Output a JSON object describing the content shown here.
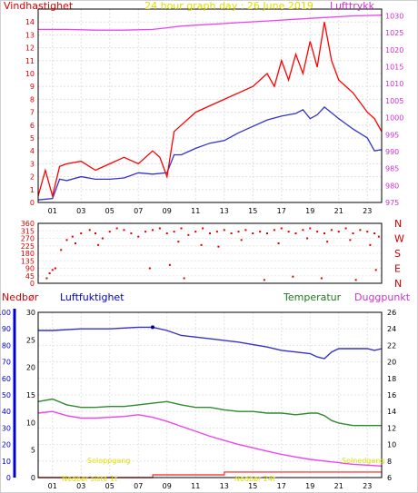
{
  "charts": {
    "wind": {
      "title": "24 hour graph day : 26 June 2019",
      "left_label": "Vindhastighet",
      "right_label": "Lufttrykk",
      "left_ticks": [
        "0",
        "1",
        "2",
        "3",
        "4",
        "5",
        "6",
        "7",
        "8",
        "9",
        "10",
        "11",
        "12",
        "13",
        "14"
      ],
      "right_ticks": [
        "975",
        "980",
        "985",
        "990",
        "995",
        "1000",
        "1005",
        "1010",
        "1015",
        "1020",
        "1025",
        "1030"
      ],
      "x_ticks": [
        "01",
        "03",
        "05",
        "07",
        "09",
        "11",
        "13",
        "15",
        "17",
        "19",
        "21",
        "23"
      ]
    },
    "direction": {
      "left_ticks": [
        "0",
        "45",
        "90",
        "135",
        "180",
        "225",
        "270",
        "315",
        "360"
      ],
      "compass": [
        "N",
        "W",
        "S",
        "E",
        "N"
      ]
    },
    "weather": {
      "label_rain": "Nedbør",
      "label_humidity": "Luftfuktighet",
      "label_temp": "Temperatur",
      "label_dew": "Duggpunkt",
      "humidity_ticks": [
        "0",
        "10",
        "20",
        "30",
        "40",
        "50",
        "60",
        "70",
        "80",
        "90",
        "100"
      ],
      "rain_ticks": [
        "0",
        "5",
        "10",
        "15",
        "20",
        "25",
        "30"
      ],
      "temp_ticks": [
        "6",
        "8",
        "10",
        "12",
        "14",
        "16",
        "18",
        "20",
        "22",
        "24",
        "26"
      ],
      "x_ticks": [
        "01",
        "03",
        "05",
        "07",
        "09",
        "11",
        "13",
        "15",
        "17",
        "19",
        "21",
        "23"
      ],
      "sunrise": "Soloppgang",
      "sunset": "Solnedgang",
      "bottom_left": "Nedbør siste 1t",
      "bottom_mid": "Nedbør 24t"
    }
  },
  "colors": {
    "wind": "#ff0000",
    "gust": "#ff6060",
    "avg": "#3333cc",
    "pressure": "#ee44ee",
    "direction": "#dd0000",
    "humidity": "#3333cc",
    "temperature": "#2e8b2e",
    "dewpoint": "#ee44ee",
    "rain": "#ff4040",
    "sun": "#dddd00",
    "title": "#dddd00",
    "axis_dark": "#000000",
    "axis_blue": "#0000cc"
  },
  "chart_data": [
    {
      "type": "line",
      "title": "24 hour graph day : 26 June 2019",
      "ylabel": "Vindhastighet",
      "ylabel_right": "Lufttrykk",
      "xlim": [
        0,
        24
      ],
      "ylim": [
        0,
        15
      ],
      "ylim_right": [
        975,
        1032
      ],
      "series": [
        {
          "axis": "left",
          "color": "#3333cc",
          "x": [
            0,
            1,
            1.5,
            2,
            3,
            4,
            5,
            6,
            7,
            8,
            9,
            9.5,
            10,
            11,
            12,
            13,
            14,
            15,
            16,
            17,
            17.5,
            18,
            18.5,
            19,
            19.5,
            20,
            21,
            22,
            23,
            23.5,
            24
          ],
          "y": [
            0.2,
            0.3,
            1.8,
            1.7,
            2.0,
            1.8,
            1.8,
            1.9,
            2.3,
            2.2,
            2.3,
            3.7,
            3.7,
            4.2,
            4.6,
            4.8,
            5.4,
            5.9,
            6.4,
            6.7,
            6.8,
            6.9,
            7.2,
            6.5,
            6.8,
            7.4,
            6.5,
            5.7,
            5.0,
            4.0,
            4.1
          ]
        },
        {
          "axis": "left",
          "color": "#ff0000",
          "x": [
            0,
            0.5,
            1,
            1.5,
            2,
            3,
            4,
            5,
            6,
            7,
            8,
            8.5,
            9,
            9.5,
            10,
            11,
            12,
            13,
            14,
            15,
            16,
            16.5,
            17,
            17.5,
            18,
            18.5,
            19,
            19.5,
            20,
            20.5,
            21,
            22,
            23,
            23.5,
            24
          ],
          "y": [
            0.5,
            2.5,
            0.5,
            2.8,
            3.0,
            3.2,
            2.5,
            3.0,
            3.5,
            3.0,
            4.0,
            3.5,
            2.0,
            5.5,
            6.0,
            7.0,
            7.5,
            8.0,
            8.5,
            9.0,
            10.0,
            9.0,
            11.0,
            9.5,
            11.5,
            10.0,
            12.5,
            10.5,
            14.0,
            11.0,
            9.5,
            8.5,
            7.0,
            6.5,
            5.5
          ]
        },
        {
          "axis": "right",
          "color": "#ee44ee",
          "x": [
            0,
            2,
            4,
            6,
            8,
            9,
            10,
            12,
            14,
            16,
            18,
            20,
            22,
            24
          ],
          "y": [
            1026,
            1026,
            1025.8,
            1025.8,
            1026,
            1026.5,
            1027,
            1027.5,
            1028,
            1028.5,
            1029,
            1029.5,
            1030,
            1030.2
          ]
        }
      ]
    },
    {
      "type": "scatter",
      "title": "",
      "ylabel": "",
      "xlim": [
        0,
        24
      ],
      "ylim": [
        0,
        360
      ],
      "series": [
        {
          "color": "#dd0000",
          "x": [
            0.6,
            0.8,
            1.0,
            1.2,
            1.6,
            2.0,
            2.4,
            3.0,
            3.6,
            4.0,
            4.5,
            5.0,
            5.5,
            6.0,
            6.5,
            7.0,
            7.5,
            8.0,
            8.5,
            9.0,
            9.5,
            10.0,
            10.5,
            11.0,
            11.5,
            12.0,
            12.5,
            13.0,
            13.5,
            14.0,
            14.5,
            15.0,
            15.5,
            16.0,
            16.5,
            17.0,
            17.5,
            18.0,
            18.5,
            19.0,
            19.5,
            20.0,
            20.5,
            21.0,
            21.5,
            22.0,
            22.5,
            23.0,
            23.5,
            23.8,
            2.6,
            4.2,
            9.8,
            11.4,
            12.6,
            14.2,
            16.8,
            18.8,
            20.2,
            21.8,
            23.2,
            7.8,
            9.2,
            10.2,
            15.8,
            17.8,
            19.8,
            22.2,
            23.6
          ],
          "y": [
            30,
            60,
            80,
            90,
            200,
            260,
            280,
            300,
            320,
            300,
            270,
            310,
            330,
            320,
            300,
            280,
            310,
            320,
            330,
            300,
            310,
            330,
            290,
            310,
            330,
            300,
            310,
            320,
            300,
            310,
            320,
            300,
            310,
            300,
            320,
            330,
            310,
            300,
            320,
            330,
            310,
            300,
            320,
            310,
            330,
            300,
            320,
            310,
            300,
            280,
            240,
            230,
            250,
            230,
            220,
            260,
            240,
            270,
            250,
            260,
            230,
            90,
            110,
            30,
            20,
            40,
            30,
            20,
            80
          ]
        }
      ]
    },
    {
      "type": "line",
      "title": "",
      "ylabel": "Luftfuktighet",
      "ylabel_right": "Temperatur",
      "xlim": [
        0,
        24
      ],
      "ylim": [
        0,
        100
      ],
      "ylim_right": [
        6,
        26
      ],
      "series": [
        {
          "name": "Luftfuktighet",
          "axis": "left",
          "color": "#3333cc",
          "x": [
            0,
            1,
            3,
            5,
            7,
            8,
            9,
            10,
            12,
            14,
            16,
            17,
            18,
            19,
            19.5,
            20,
            20.5,
            21,
            22,
            23,
            23.5,
            24
          ],
          "y": [
            89,
            89,
            90,
            90,
            91,
            91,
            89,
            86,
            84,
            82,
            79,
            77,
            76,
            75,
            73,
            72,
            76,
            78,
            78,
            78,
            77,
            78
          ]
        },
        {
          "name": "Temperatur",
          "axis": "right",
          "color": "#2e8b2e",
          "x": [
            0,
            1,
            2,
            3,
            4,
            5,
            6,
            7,
            8,
            9,
            10,
            11,
            12,
            13,
            14,
            15,
            16,
            17,
            18,
            19,
            19.5,
            20,
            20.5,
            21,
            22,
            23,
            24
          ],
          "y": [
            15.2,
            15.5,
            14.8,
            14.5,
            14.5,
            14.6,
            14.6,
            14.8,
            15.0,
            15.2,
            14.8,
            14.5,
            14.5,
            14.2,
            14.0,
            14.0,
            13.8,
            13.8,
            13.6,
            13.8,
            13.8,
            13.5,
            12.9,
            12.6,
            12.3,
            12.3,
            12.3
          ]
        },
        {
          "name": "Duggpunkt",
          "axis": "right",
          "color": "#ee44ee",
          "x": [
            0,
            1,
            2,
            3,
            4,
            5,
            6,
            7,
            8,
            9,
            10,
            11,
            12,
            13,
            14,
            15,
            16,
            17,
            18,
            19,
            20,
            21,
            22,
            23,
            24
          ],
          "y": [
            13.8,
            14.0,
            13.5,
            13.2,
            13.2,
            13.3,
            13.4,
            13.6,
            13.3,
            12.8,
            12.2,
            11.6,
            11.0,
            10.5,
            10.0,
            9.6,
            9.2,
            8.8,
            8.5,
            8.2,
            8.0,
            7.8,
            7.6,
            7.5,
            7.4
          ]
        },
        {
          "name": "Nedbør",
          "axis": "rain",
          "color": "#ff4040",
          "x": [
            0,
            8,
            8.01,
            13,
            13.01,
            24
          ],
          "y": [
            0,
            0,
            0.5,
            0.5,
            1.0,
            1.0
          ]
        }
      ]
    }
  ]
}
